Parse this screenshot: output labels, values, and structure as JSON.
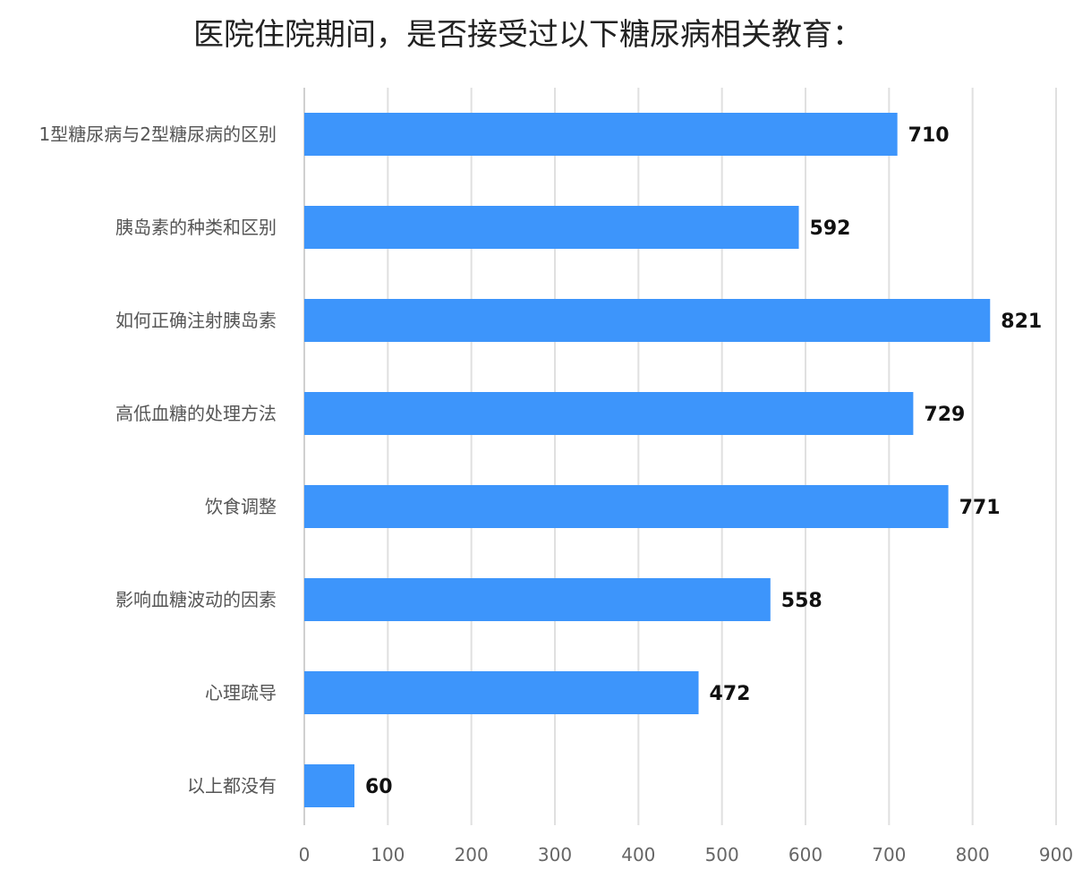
{
  "chart_data": {
    "type": "bar",
    "orientation": "horizontal",
    "title": "医院住院期间，是否接受过以下糖尿病相关教育：",
    "xlabel": "",
    "ylabel": "",
    "categories": [
      "1型糖尿病与2型糖尿病的区别",
      "胰岛素的种类和区别",
      "如何正确注射胰岛素",
      "高低血糖的处理方法",
      "饮食调整",
      "影响血糖波动的因素",
      "心理疏导",
      "以上都没有"
    ],
    "values": [
      710,
      592,
      821,
      729,
      771,
      558,
      472,
      60
    ],
    "xlim": [
      0,
      900
    ],
    "ticks": [
      0,
      100,
      200,
      300,
      400,
      500,
      600,
      700,
      800,
      900
    ],
    "grid": true,
    "bar_color": "#3d95fb"
  }
}
